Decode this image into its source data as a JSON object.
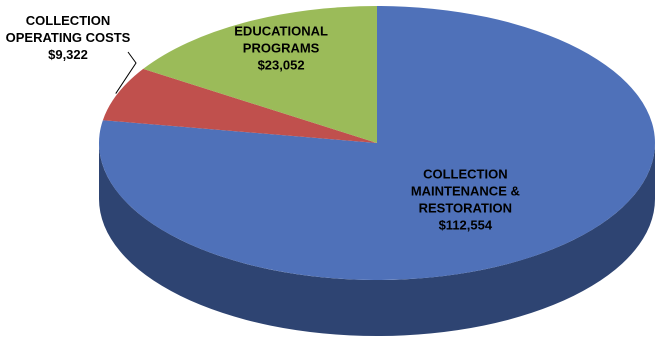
{
  "chart_data": {
    "type": "pie",
    "style": "3d",
    "title": "",
    "slices": [
      {
        "label_lines": [
          "COLLECTION",
          "MAINTENANCE &",
          "RESTORATION",
          "$112,554"
        ],
        "name": "COLLECTION MAINTENANCE & RESTORATION",
        "value": 112554,
        "value_text": "$112,554",
        "color": "#4f71b9",
        "side_color": "#2e4472",
        "label_placement": "inside"
      },
      {
        "label_lines": [
          "COLLECTION",
          "OPERATING COSTS",
          "$9,322"
        ],
        "name": "COLLECTION OPERATING COSTS",
        "value": 9322,
        "value_text": "$9,322",
        "color": "#c0504d",
        "side_color": "#7d2f2d",
        "label_placement": "outside"
      },
      {
        "label_lines": [
          "EDUCATIONAL",
          "PROGRAMS",
          "$23,052"
        ],
        "name": "EDUCATIONAL PROGRAMS",
        "value": 23052,
        "value_text": "$23,052",
        "color": "#9bbb59",
        "side_color": "#5f7a2c",
        "label_placement": "inside"
      }
    ],
    "legend": "none",
    "start_angle": "12 o'clock, clockwise"
  }
}
